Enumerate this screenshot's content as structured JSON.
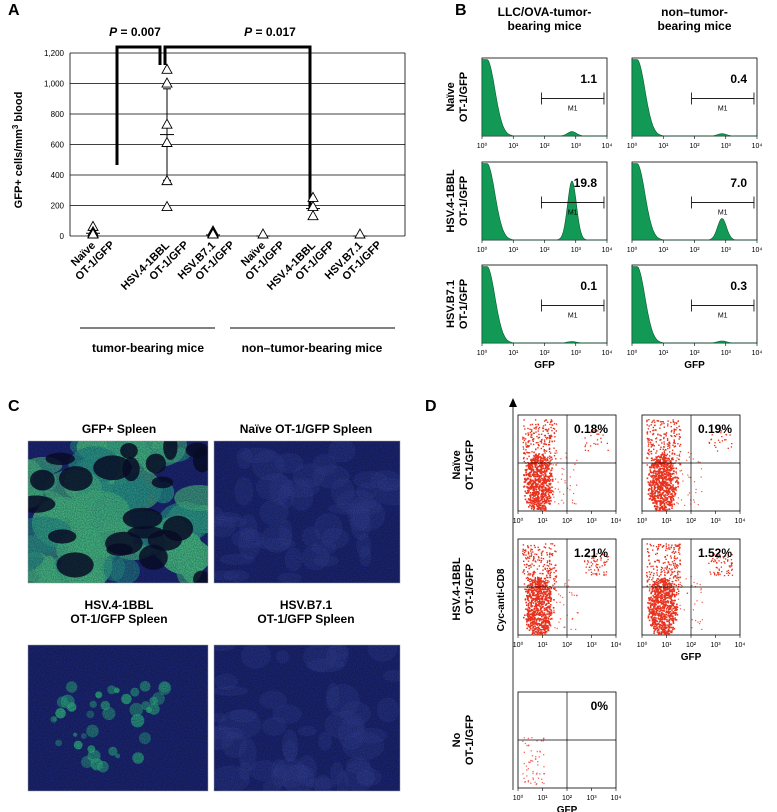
{
  "panels": {
    "a_label": "A",
    "b_label": "B",
    "c_label": "C",
    "d_label": "D"
  },
  "panel_a": {
    "p_value_1": "P = 0.007",
    "p_value_2": "P = 0.017",
    "group_labels": [
      "tumor-bearing mice",
      "non–tumor-bearing mice"
    ]
  },
  "panel_b": {
    "col_titles": [
      "LLC/OVA-tumor-\nbearing mice",
      "non–tumor-\nbearing mice"
    ],
    "row_labels": [
      "Naïve\nOT-1/GFP",
      "HSV.4-1BBL\nOT-1/GFP",
      "HSV.B7.1\nOT-1/GFP"
    ],
    "gate_label": "M1",
    "xlabel": "GFP",
    "values": [
      [
        "1.1",
        "0.4"
      ],
      [
        "19.8",
        "7.0"
      ],
      [
        "0.1",
        "0.3"
      ]
    ]
  },
  "panel_c": {
    "titles": [
      "GFP+ Spleen",
      "Naïve OT-1/GFP Spleen",
      "HSV.4-1BBL\nOT-1/GFP Spleen",
      "HSV.B7.1\nOT-1/GFP Spleen"
    ]
  },
  "panel_d": {
    "row_labels": [
      "Naïve\nOT-1/GFP",
      "HSV.4-1BBL\nOT-1/GFP",
      "No\nOT-1/GFP"
    ],
    "ylabel": "Cyc-anti-CD8",
    "xlabel": "GFP",
    "values": [
      "0.18%",
      "0.19%",
      "1.21%",
      "1.52%",
      "0%"
    ]
  },
  "chart_data": [
    {
      "type": "scatter",
      "title": "",
      "ylabel": "GFP+ cells/mm³ blood",
      "xlabel": "",
      "ylim": [
        0,
        1200
      ],
      "yticks": [
        0,
        200,
        400,
        600,
        800,
        1000,
        1200
      ],
      "ytick_labels": [
        "0",
        "200",
        "400",
        "600",
        "800",
        "1,000",
        "1,200"
      ],
      "categories": [
        "Naïve OT-1/GFP",
        "HSV.4-1BBL OT-1/GFP",
        "HSV.B7.1 OT-1/GFP",
        "Naïve OT-1/GFP",
        "HSV.4-1BBL OT-1/GFP",
        "HSV.B7.1 OT-1/GFP"
      ],
      "cat_lines": [
        [
          "Naïve",
          "OT-1/GFP"
        ],
        [
          "HSV.4-1BBL",
          "OT-1/GFP"
        ],
        [
          "HSV.B7.1",
          "OT-1/GFP"
        ],
        [
          "Naïve",
          "OT-1/GFP"
        ],
        [
          "HSV.4-1BBL",
          "OT-1/GFP"
        ],
        [
          "HSV.B7.1",
          "OT-1/GFP"
        ]
      ],
      "points": [
        [
          50,
          15,
          5,
          0
        ],
        [
          1080,
          990,
          720,
          600,
          350,
          180
        ],
        [
          20,
          10,
          5,
          2,
          0
        ],
        [
          0
        ],
        [
          240,
          180,
          120
        ],
        [
          0
        ]
      ],
      "means": [
        18,
        665,
        7,
        0,
        180,
        0
      ],
      "errors": [
        20,
        300,
        8,
        0,
        55,
        0
      ],
      "grid": true
    },
    {
      "type": "histogram",
      "xlabel": "GFP",
      "xscale": "log",
      "xlim": [
        1,
        10000
      ],
      "xticks": [
        "10⁰",
        "10¹",
        "10²",
        "10³",
        "10⁴"
      ],
      "gate": [
        80,
        8000
      ],
      "gate_label": "M1",
      "plots": [
        {
          "row": "Naïve OT-1/GFP",
          "col": "LLC/OVA-tumor-bearing mice",
          "percent": 1.1
        },
        {
          "row": "Naïve OT-1/GFP",
          "col": "non–tumor-bearing mice",
          "percent": 0.4
        },
        {
          "row": "HSV.4-1BBL OT-1/GFP",
          "col": "LLC/OVA-tumor-bearing mice",
          "percent": 19.8
        },
        {
          "row": "HSV.4-1BBL OT-1/GFP",
          "col": "non–tumor-bearing mice",
          "percent": 7.0
        },
        {
          "row": "HSV.B7.1 OT-1/GFP",
          "col": "LLC/OVA-tumor-bearing mice",
          "percent": 0.1
        },
        {
          "row": "HSV.B7.1 OT-1/GFP",
          "col": "non–tumor-bearing mice",
          "percent": 0.3
        }
      ],
      "fill": "#119955"
    },
    {
      "type": "scatter",
      "xlabel": "GFP",
      "ylabel": "Cyc-anti-CD8",
      "xscale": "log",
      "xlim": [
        1,
        10000
      ],
      "xticks": [
        "10⁰",
        "10¹",
        "10²",
        "10³",
        "10⁴"
      ],
      "plots": [
        {
          "row": "Naïve OT-1/GFP",
          "percent": "0.18%"
        },
        {
          "row": "Naïve OT-1/GFP",
          "percent": "0.19%"
        },
        {
          "row": "HSV.4-1BBL OT-1/GFP",
          "percent": "1.21%"
        },
        {
          "row": "HSV.4-1BBL OT-1/GFP",
          "percent": "1.52%"
        },
        {
          "row": "No OT-1/GFP",
          "percent": "0%"
        }
      ],
      "dot_color": "#e8321e"
    }
  ],
  "colors": {
    "hist_fill": "#119955",
    "dot": "#e8321e",
    "micro_bg": "#1f2b86",
    "micro_green": "#33cc99"
  }
}
